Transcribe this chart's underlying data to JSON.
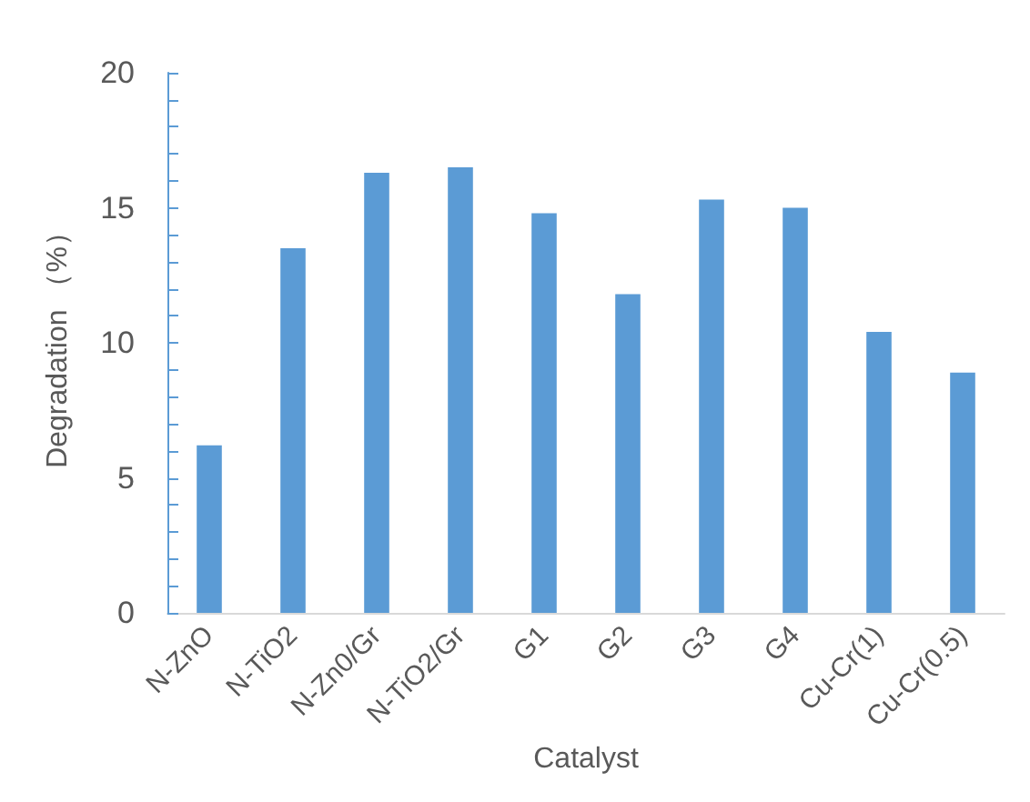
{
  "chart_data": {
    "type": "bar",
    "xlabel": "Catalyst",
    "ylabel": "Degradation （%）",
    "categories": [
      "N-ZnO",
      "N-TiO2",
      "N-Zn0/Gr",
      "N-TiO2/Gr",
      "G1",
      "G2",
      "G3",
      "G4",
      "Cu-Cr(1)",
      "Cu-Cr(0.5)"
    ],
    "values": [
      6.2,
      13.5,
      16.3,
      16.5,
      14.8,
      11.8,
      15.3,
      15.0,
      10.4,
      8.9
    ],
    "color": "#5b9bd5",
    "ylim": [
      0,
      20
    ],
    "yticks": [
      0,
      {
        "value": 1,
        "label": null
      },
      {
        "value": 2,
        "label": null
      },
      {
        "value": 3,
        "label": null
      },
      {
        "value": 4,
        "label": null
      },
      5,
      {
        "value": 6,
        "label": null
      },
      {
        "value": 7,
        "label": null
      },
      {
        "value": 8,
        "label": null
      },
      {
        "value": 9,
        "label": null
      },
      10,
      {
        "value": 11,
        "label": null
      },
      {
        "value": 12,
        "label": null
      },
      {
        "value": 13,
        "label": null
      },
      {
        "value": 14,
        "label": null
      },
      15,
      {
        "value": 16,
        "label": null
      },
      {
        "value": 17,
        "label": null
      },
      {
        "value": 18,
        "label": null
      },
      {
        "value": 19,
        "label": null
      },
      20
    ],
    "grid": false
  }
}
